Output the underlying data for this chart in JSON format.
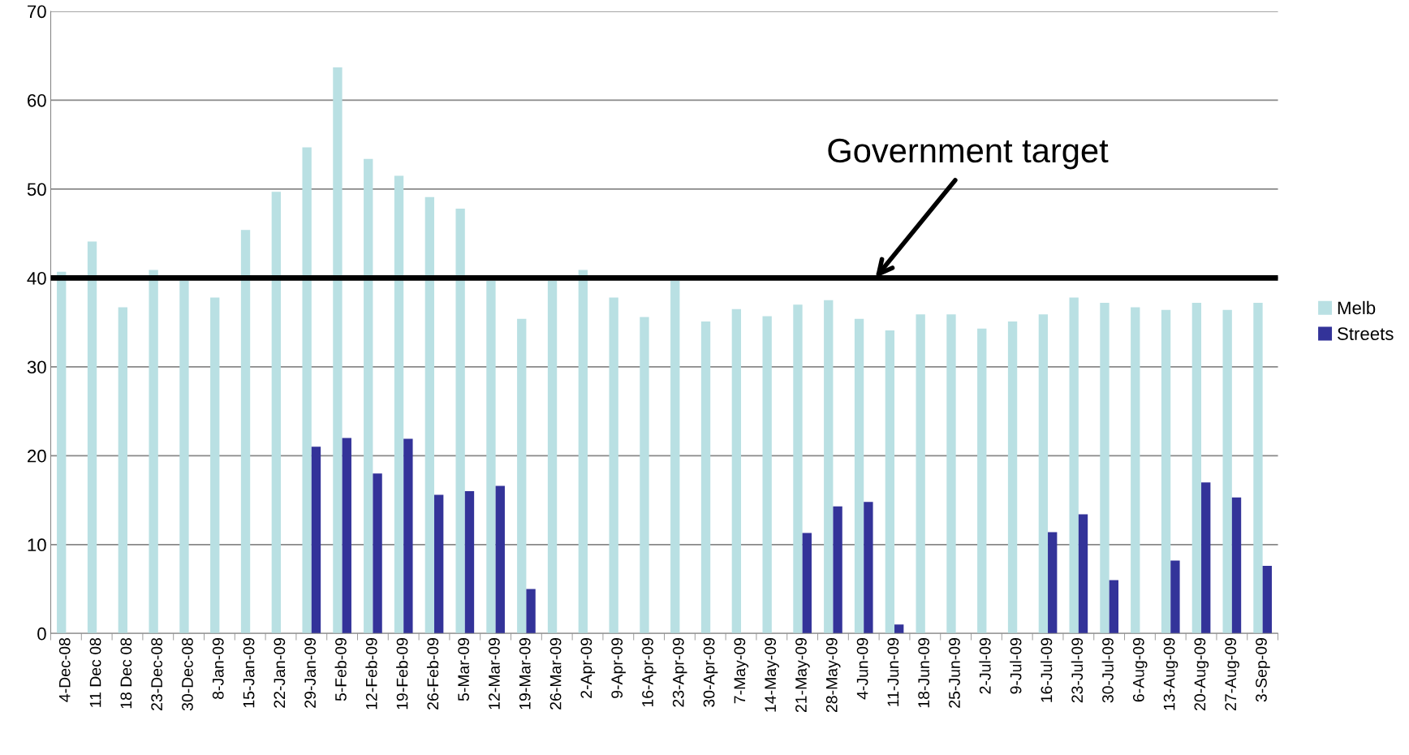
{
  "chart_data": {
    "type": "bar",
    "categories": [
      "4-Dec-08",
      "11 Dec 08",
      "18 Dec 08",
      "23-Dec-08",
      "30-Dec-08",
      "8-Jan-09",
      "15-Jan-09",
      "22-Jan-09",
      "29-Jan-09",
      "5-Feb-09",
      "12-Feb-09",
      "19-Feb-09",
      "26-Feb-09",
      "5-Mar-09",
      "12-Mar-09",
      "19-Mar-09",
      "26-Mar-09",
      "2-Apr-09",
      "9-Apr-09",
      "16-Apr-09",
      "23-Apr-09",
      "30-Apr-09",
      "7-May-09",
      "14-May-09",
      "21-May-09",
      "28-May-09",
      "4-Jun-09",
      "11-Jun-09",
      "18-Jun-09",
      "25-Jun-09",
      "2-Jul-09",
      "9-Jul-09",
      "16-Jul-09",
      "23-Jul-09",
      "30-Jul-09",
      "6-Aug-09",
      "13-Aug-09",
      "20-Aug-09",
      "27-Aug-09",
      "3-Sep-09"
    ],
    "series": [
      {
        "name": "Melb",
        "color": "#b9e0e3",
        "values": [
          40.7,
          44.1,
          36.7,
          40.9,
          39.7,
          37.8,
          45.4,
          49.7,
          54.7,
          63.7,
          53.4,
          51.5,
          49.1,
          47.8,
          39.7,
          35.4,
          39.7,
          40.9,
          37.8,
          35.6,
          39.7,
          35.1,
          36.5,
          35.7,
          37.0,
          37.5,
          35.4,
          34.1,
          35.9,
          35.9,
          34.3,
          35.1,
          35.9,
          37.8,
          37.2,
          36.7,
          36.4,
          37.2,
          36.4,
          37.2
        ]
      },
      {
        "name": "Streets",
        "color": "#333399",
        "values": [
          null,
          null,
          null,
          null,
          null,
          null,
          null,
          null,
          21.0,
          22.0,
          18.0,
          21.9,
          15.6,
          16.0,
          16.6,
          5.0,
          null,
          null,
          null,
          null,
          null,
          null,
          null,
          null,
          11.3,
          14.3,
          14.8,
          1.0,
          null,
          null,
          null,
          null,
          11.4,
          13.4,
          6.0,
          null,
          8.2,
          17.0,
          15.3,
          7.6
        ]
      }
    ],
    "ylim": [
      0,
      70
    ],
    "yticks": [
      0,
      10,
      20,
      30,
      40,
      50,
      60,
      70
    ],
    "grid": "y",
    "legend": "right",
    "ref_lines": [
      {
        "axis": "y",
        "value": 40,
        "label": "Government target",
        "color": "#000000"
      }
    ]
  }
}
